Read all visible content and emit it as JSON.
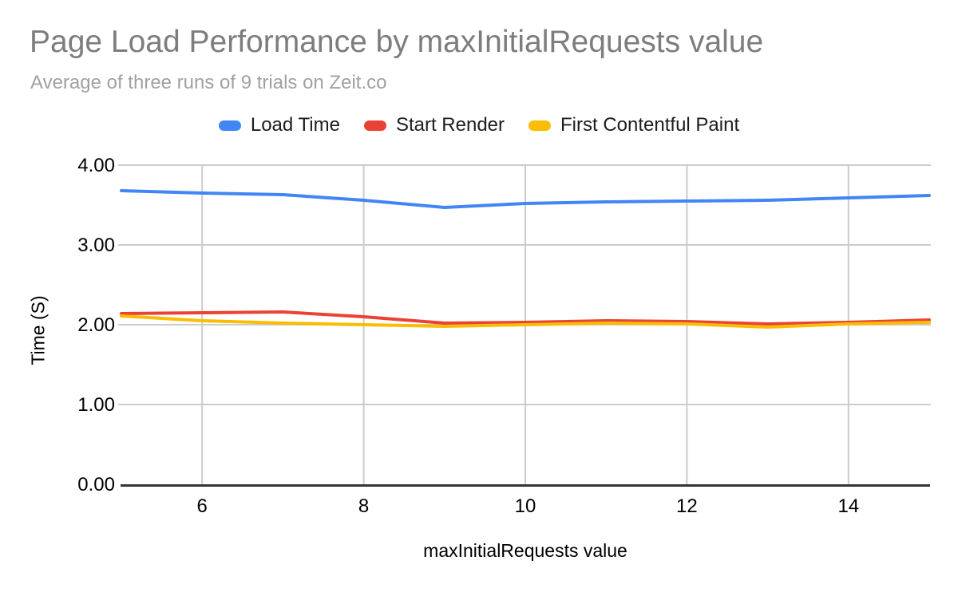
{
  "colors": {
    "background": "#ffffff",
    "gridline": "#cccccc",
    "axis_line": "#333333",
    "title_text": "#7d7d7d",
    "subtitle_text": "#a1a1a1",
    "tick_text": "#000000"
  },
  "chart_data": {
    "type": "line",
    "title": "Page Load Performance by maxInitialRequests value",
    "subtitle": "Average of three runs of 9 trials on Zeit.co",
    "xlabel": "maxInitialRequests value",
    "ylabel": "Time (S)",
    "xlim": [
      5,
      15
    ],
    "ylim": [
      0,
      4
    ],
    "grid": true,
    "legend_position": "top",
    "x": [
      5,
      6,
      7,
      8,
      9,
      10,
      11,
      12,
      13,
      14,
      15
    ],
    "x_tick_values": [
      6,
      8,
      10,
      12,
      14
    ],
    "x_tick_labels": [
      "6",
      "8",
      "10",
      "12",
      "14"
    ],
    "y_tick_values": [
      0,
      1,
      2,
      3,
      4
    ],
    "y_tick_labels": [
      "0.00",
      "1.00",
      "2.00",
      "3.00",
      "4.00"
    ],
    "series": [
      {
        "name": "Load Time",
        "color": "#4285F4",
        "values": [
          3.68,
          3.65,
          3.63,
          3.56,
          3.47,
          3.52,
          3.54,
          3.55,
          3.56,
          3.59,
          3.62
        ]
      },
      {
        "name": "Start Render",
        "color": "#EA4335",
        "values": [
          2.14,
          2.15,
          2.16,
          2.1,
          2.02,
          2.03,
          2.05,
          2.04,
          2.01,
          2.03,
          2.06
        ]
      },
      {
        "name": "First Contentful Paint",
        "color": "#FBBC04",
        "values": [
          2.11,
          2.05,
          2.02,
          2.0,
          1.98,
          2.0,
          2.02,
          2.01,
          1.97,
          2.01,
          2.03
        ]
      }
    ]
  }
}
